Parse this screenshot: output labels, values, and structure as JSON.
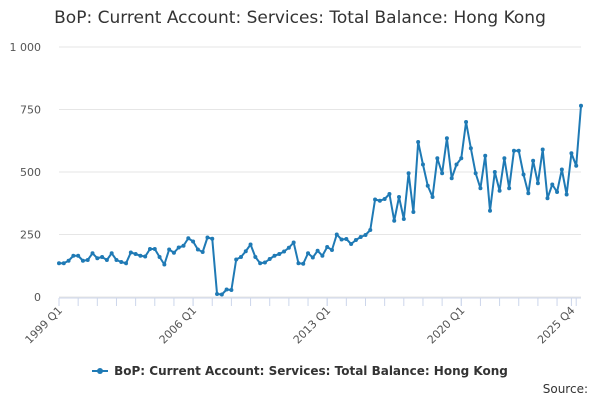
{
  "chart_data": {
    "type": "line",
    "title": "BoP: Current Account: Services: Total Balance: Hong Kong",
    "xlabel": "",
    "ylabel": "",
    "ylim": [
      0,
      1000
    ],
    "yticks": [
      0,
      250,
      500,
      750,
      1000
    ],
    "ytick_labels": [
      "0",
      "250",
      "500",
      "750",
      "1 000"
    ],
    "grid": true,
    "x_start": "1999 Q1",
    "xtick_labels": [
      {
        "index": 0,
        "label": "1999 Q1"
      },
      {
        "index": 28,
        "label": "2006 Q1"
      },
      {
        "index": 56,
        "label": "2013 Q1"
      },
      {
        "index": 84,
        "label": "2020 Q1"
      },
      {
        "index": 107,
        "label": "2025 Q4"
      }
    ],
    "legend_position": "bottom",
    "series": [
      {
        "name": "BoP: Current Account: Services: Total Balance: Hong Kong",
        "color": "#1f7ab5",
        "values": [
          135,
          135,
          145,
          165,
          165,
          145,
          148,
          175,
          155,
          160,
          148,
          175,
          148,
          140,
          135,
          178,
          172,
          165,
          162,
          192,
          192,
          160,
          130,
          190,
          177,
          198,
          205,
          235,
          222,
          190,
          180,
          238,
          233,
          12,
          10,
          30,
          28,
          150,
          160,
          183,
          210,
          160,
          135,
          138,
          152,
          165,
          172,
          182,
          197,
          218,
          135,
          133,
          175,
          158,
          185,
          165,
          200,
          188,
          250,
          230,
          232,
          212,
          228,
          240,
          248,
          268,
          390,
          385,
          392,
          412,
          305,
          400,
          312,
          495,
          340,
          620,
          530,
          445,
          400,
          555,
          495,
          635,
          475,
          530,
          555,
          700,
          595,
          495,
          435,
          565,
          345,
          500,
          425,
          555,
          435,
          585,
          585,
          490,
          415,
          545,
          455,
          590,
          395,
          450,
          420,
          510,
          410,
          575,
          525,
          765
        ]
      }
    ]
  },
  "source_label": "Source:"
}
